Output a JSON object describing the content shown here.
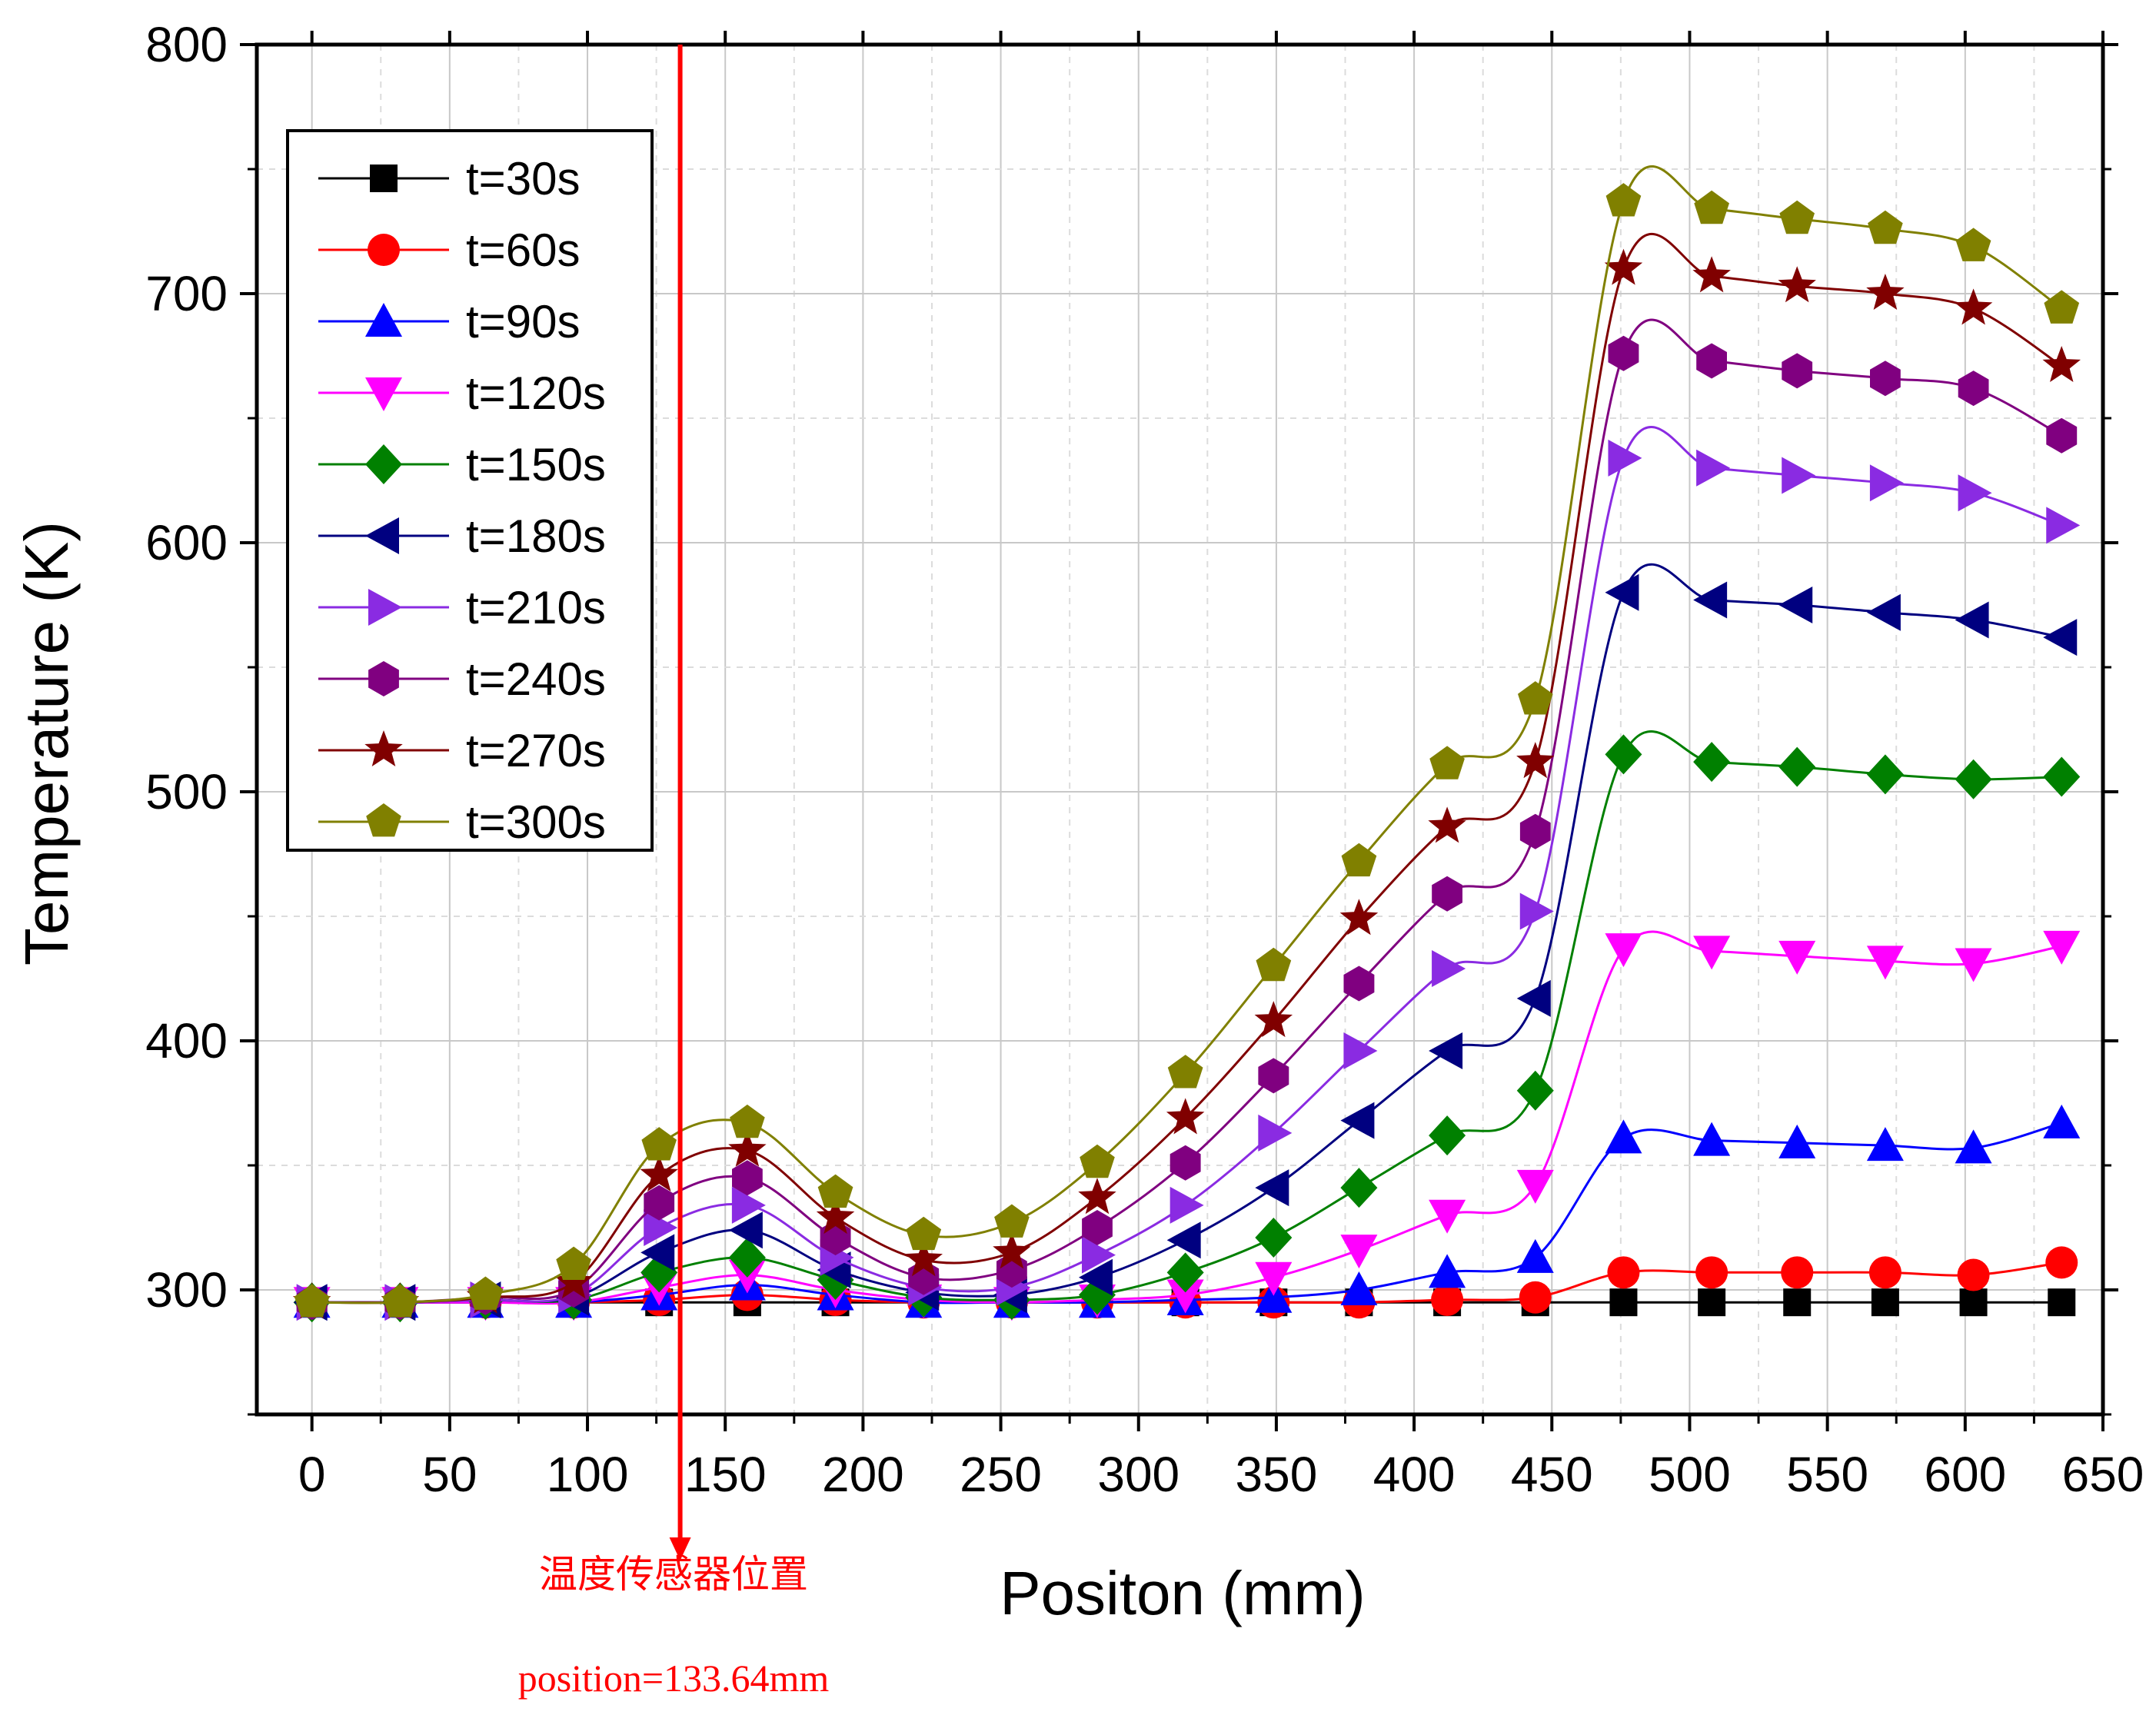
{
  "chart_data": {
    "type": "line",
    "xlabel": "Positon (mm)",
    "ylabel": "Temperature (K)",
    "xlim": [
      -20,
      650
    ],
    "ylim": [
      250,
      800
    ],
    "xticks": [
      0,
      50,
      100,
      150,
      200,
      250,
      300,
      350,
      400,
      450,
      500,
      550,
      600,
      650
    ],
    "yticks": [
      300,
      400,
      500,
      600,
      700,
      800
    ],
    "grid": true,
    "legend_position": "top-left",
    "x": [
      0,
      32,
      63,
      95,
      126,
      158,
      190,
      222,
      254,
      285,
      317,
      349,
      380,
      412,
      444,
      476,
      508,
      539,
      571,
      603,
      635
    ],
    "series": [
      {
        "name": "t=30s",
        "color": "#000000",
        "marker": "square",
        "values": [
          295,
          295,
          295,
          295,
          295,
          295,
          295,
          295,
          295,
          295,
          295,
          295,
          295,
          295,
          295,
          295,
          295,
          295,
          295,
          295,
          295
        ]
      },
      {
        "name": "t=60s",
        "color": "#ff0000",
        "marker": "circle",
        "values": [
          295,
          295,
          295,
          295,
          296,
          298,
          296,
          295,
          295,
          295,
          295,
          295,
          295,
          296,
          297,
          307,
          307,
          307,
          307,
          306,
          311
        ]
      },
      {
        "name": "t=90s",
        "color": "#0000ff",
        "marker": "triangle-up",
        "values": [
          295,
          295,
          295,
          295,
          298,
          302,
          298,
          295,
          295,
          295,
          296,
          297,
          300,
          307,
          313,
          361,
          360,
          359,
          358,
          357,
          367
        ]
      },
      {
        "name": "t=120s",
        "color": "#ff00ff",
        "marker": "triangle-down",
        "values": [
          295,
          295,
          295,
          295,
          301,
          306,
          300,
          296,
          295,
          296,
          298,
          305,
          316,
          330,
          342,
          437,
          436,
          434,
          432,
          431,
          438
        ]
      },
      {
        "name": "t=150s",
        "color": "#008000",
        "marker": "diamond",
        "values": [
          295,
          295,
          296,
          296,
          307,
          313,
          304,
          297,
          296,
          298,
          307,
          321,
          341,
          362,
          380,
          515,
          512,
          510,
          507,
          505,
          506
        ]
      },
      {
        "name": "t=180s",
        "color": "#000080",
        "marker": "triangle-left",
        "values": [
          295,
          295,
          296,
          297,
          315,
          324,
          308,
          299,
          298,
          305,
          320,
          341,
          368,
          396,
          417,
          580,
          577,
          575,
          572,
          569,
          562
        ]
      },
      {
        "name": "t=210s",
        "color": "#8a2be2",
        "marker": "triangle-right",
        "values": [
          295,
          295,
          296,
          298,
          325,
          334,
          313,
          301,
          301,
          314,
          334,
          363,
          396,
          429,
          452,
          634,
          630,
          627,
          624,
          620,
          607
        ]
      },
      {
        "name": "t=240s",
        "color": "#800080",
        "marker": "hexagon",
        "values": [
          295,
          295,
          297,
          300,
          335,
          345,
          321,
          305,
          308,
          325,
          351,
          386,
          423,
          459,
          484,
          676,
          673,
          669,
          666,
          662,
          643
        ]
      },
      {
        "name": "t=270s",
        "color": "#800000",
        "marker": "star",
        "values": [
          295,
          295,
          297,
          303,
          346,
          356,
          329,
          312,
          315,
          337,
          369,
          408,
          449,
          486,
          512,
          710,
          707,
          703,
          700,
          694,
          671
        ]
      },
      {
        "name": "t=300s",
        "color": "#808000",
        "marker": "pentagon",
        "values": [
          295,
          295,
          298,
          310,
          358,
          367,
          339,
          322,
          327,
          351,
          387,
          430,
          472,
          511,
          537,
          737,
          734,
          730,
          726,
          719,
          694
        ]
      }
    ],
    "annotation": {
      "x": 133.64,
      "color": "#ff0000",
      "label": "温度传感器位置",
      "sublabel": "position=133.64mm"
    }
  }
}
